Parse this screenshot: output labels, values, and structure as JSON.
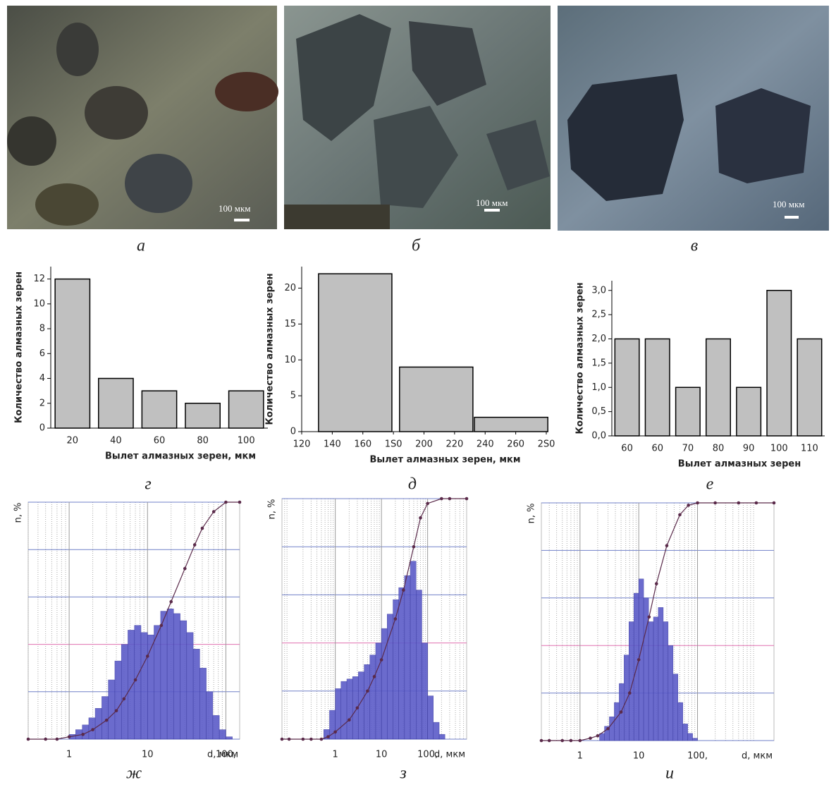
{
  "figure": {
    "photos": [
      {
        "scale_label": "100 мкм",
        "panel_label": "а"
      },
      {
        "scale_label": "100 мкм",
        "panel_label": "б"
      },
      {
        "scale_label": "100 мкм",
        "panel_label": "в"
      }
    ]
  },
  "chart_data": [
    {
      "type": "bar",
      "panel_label": "г",
      "y_label": "Количество алмазных зерен",
      "x_label": "Вылет алмазных зерен, мкм",
      "categories": [
        "20",
        "40",
        "60",
        "80",
        "100"
      ],
      "values": [
        12,
        4,
        3,
        2,
        3
      ],
      "color": "#c0c0c0",
      "ylim": [
        0,
        13
      ],
      "yticks": [
        0,
        2,
        4,
        6,
        8,
        10,
        12
      ]
    },
    {
      "type": "bar",
      "panel_label": "д",
      "y_label": "Количество алмазных зерен",
      "x_label": "Вылет алмазных зерен, мкм",
      "x": [
        155,
        208,
        257
      ],
      "values": [
        22,
        9,
        2
      ],
      "color": "#c0c0c0",
      "xlim": [
        120,
        280
      ],
      "xticks": [
        120,
        140,
        160,
        {
          "value": 180,
          "label": "1S0"
        },
        200,
        220,
        240,
        260,
        {
          "value": 280,
          "label": "2S0"
        }
      ],
      "ylim": [
        0,
        23
      ],
      "yticks": [
        0,
        5,
        10,
        15,
        20
      ]
    },
    {
      "type": "bar",
      "panel_label": "е",
      "y_label": "Количество алмазных зерен",
      "x_label": "Вылет алмазных зерен",
      "categories": [
        "60",
        "60",
        "70",
        "80",
        "90",
        "100",
        "110"
      ],
      "values": [
        2,
        2,
        1,
        2,
        1,
        3,
        2
      ],
      "color": "#c0c0c0",
      "ylim": [
        0,
        3.2
      ],
      "yticks": [
        {
          "value": 0,
          "label": "0,0"
        },
        {
          "value": 0.5,
          "label": "0,5"
        },
        {
          "value": 1,
          "label": "1,0"
        },
        {
          "value": 1.5,
          "label": "1,5"
        },
        {
          "value": 2,
          "label": "2,0"
        },
        {
          "value": 2.5,
          "label": "2,5"
        },
        {
          "value": 3,
          "label": "3,0"
        }
      ]
    },
    {
      "type": "histogram",
      "panel_label": "ж",
      "y_label": "n, %",
      "x_label": "d, мкм",
      "xscale": "log",
      "xlim": [
        0.3,
        150
      ],
      "xticks": [
        1,
        10,
        {
          "value": 100,
          "label": "100,"
        }
      ],
      "ylim": [
        0,
        100
      ],
      "yticks": [
        0,
        20,
        40,
        60,
        80,
        100
      ],
      "bins": [
        1,
        1.21,
        1.47,
        1.78,
        2.15,
        2.61,
        3.16,
        3.83,
        4.64,
        5.62,
        6.81,
        8.25,
        10,
        12.1,
        14.7,
        17.8,
        21.5,
        26.1,
        31.6,
        38.3,
        46.4,
        56.2,
        68.1,
        82.5,
        100,
        121
      ],
      "values": [
        2,
        4,
        6,
        9,
        13,
        18,
        25,
        33,
        40,
        46,
        48,
        45,
        44,
        48,
        54,
        55,
        53,
        50,
        45,
        38,
        30,
        20,
        10,
        4,
        1
      ],
      "color": "#5b5bc8",
      "cumulative": {
        "x": [
          0.3,
          0.5,
          0.7,
          1,
          1.5,
          2,
          3,
          4,
          5,
          7,
          10,
          15,
          20,
          30,
          40,
          50,
          70,
          100,
          150
        ],
        "values": [
          0,
          0,
          0,
          1,
          2,
          4,
          8,
          12,
          17,
          25,
          35,
          48,
          58,
          72,
          82,
          89,
          96,
          100,
          100
        ],
        "color": "#5a2a4a"
      }
    },
    {
      "type": "histogram",
      "panel_label": "з",
      "y_label": "n, %",
      "x_label": "d, мкм",
      "xscale": "log",
      "xlim": [
        0.07,
        700
      ],
      "xticks": [
        1,
        10,
        {
          "value": 100,
          "label": "100,"
        }
      ],
      "ylim": [
        0,
        100
      ],
      "yticks": [
        0,
        20,
        40,
        60,
        80,
        100
      ],
      "bins": [
        0.562,
        0.75,
        1,
        1.33,
        1.78,
        2.37,
        3.16,
        4.22,
        5.62,
        7.5,
        10,
        13.3,
        17.8,
        23.7,
        31.6,
        42.2,
        56.2,
        75,
        100,
        133,
        178,
        237
      ],
      "values": [
        4,
        12,
        21,
        24,
        25,
        26,
        28,
        31,
        35,
        40,
        46,
        52,
        58,
        63,
        68,
        74,
        62,
        40,
        18,
        7,
        2
      ],
      "color": "#5b5bc8",
      "cumulative": {
        "x": [
          0.07,
          0.1,
          0.2,
          0.3,
          0.5,
          0.7,
          1,
          2,
          3,
          5,
          7,
          10,
          20,
          30,
          50,
          70,
          100,
          200,
          300,
          700
        ],
        "values": [
          0,
          0,
          0,
          0,
          0,
          1,
          3,
          8,
          13,
          20,
          26,
          33,
          50,
          62,
          80,
          92,
          98,
          100,
          100,
          100
        ],
        "color": "#5a2a4a"
      }
    },
    {
      "type": "histogram",
      "panel_label": "и",
      "y_label": "n, %",
      "x_label": "d, мкм",
      "xscale": "log",
      "xlim": [
        0.22,
        2000
      ],
      "xticks": [
        1,
        10,
        {
          "value": 100,
          "label": "100,"
        }
      ],
      "ylim": [
        0,
        100
      ],
      "yticks": [
        0,
        20,
        40,
        60,
        80,
        100
      ],
      "bins": [
        2.15,
        2.61,
        3.16,
        3.83,
        4.64,
        5.62,
        6.81,
        8.25,
        10,
        12.1,
        14.7,
        17.8,
        21.5,
        26.1,
        31.6,
        38.3,
        46.4,
        56.2,
        68.1,
        82.5,
        100
      ],
      "values": [
        3,
        6,
        10,
        16,
        24,
        36,
        50,
        62,
        68,
        60,
        50,
        52,
        56,
        50,
        40,
        28,
        16,
        7,
        3,
        1
      ],
      "color": "#5b5bc8",
      "cumulative": {
        "x": [
          0.22,
          0.3,
          0.5,
          0.7,
          1,
          1.5,
          2,
          3,
          5,
          7,
          10,
          15,
          20,
          30,
          50,
          70,
          100,
          200,
          500,
          1000,
          2000
        ],
        "values": [
          0,
          0,
          0,
          0,
          0,
          1,
          2,
          5,
          12,
          20,
          34,
          52,
          66,
          82,
          95,
          99,
          100,
          100,
          100,
          100,
          100
        ],
        "color": "#5a2a4a"
      }
    }
  ]
}
